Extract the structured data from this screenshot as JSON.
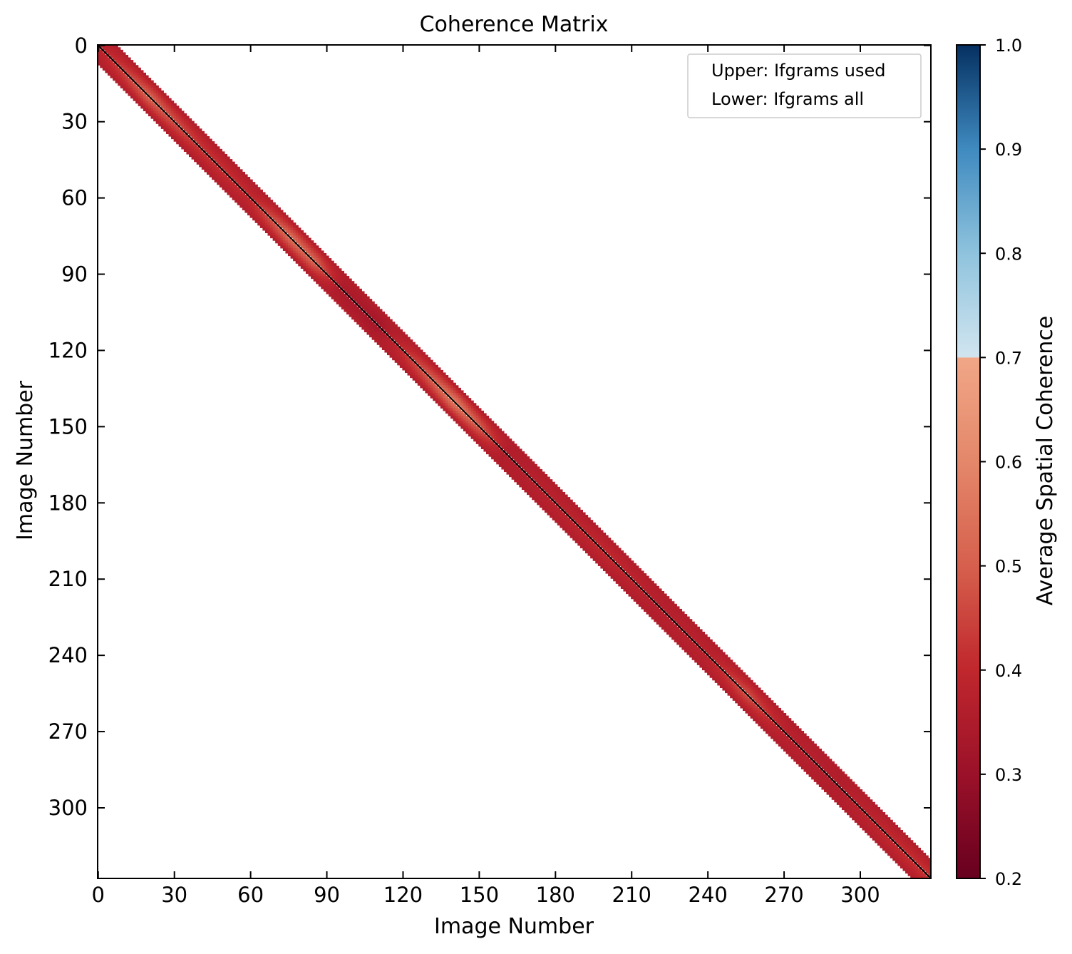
{
  "chart_data": {
    "type": "heatmap",
    "title": "Coherence Matrix",
    "xlabel": "Image Number",
    "ylabel": "Image Number",
    "n_images": 328,
    "xlim": [
      0,
      328
    ],
    "ylim": [
      328,
      0
    ],
    "xticks": [
      0,
      30,
      60,
      90,
      120,
      150,
      180,
      210,
      240,
      270,
      300
    ],
    "yticks": [
      0,
      30,
      60,
      90,
      120,
      150,
      180,
      210,
      240,
      270,
      300
    ],
    "connection_span": 7,
    "diagonal_color": "#000000",
    "background": "#ffffff",
    "coherence_profile": {
      "index": [
        0,
        20,
        40,
        60,
        75,
        85,
        95,
        110,
        125,
        140,
        150,
        160,
        180,
        200,
        220,
        240,
        255,
        270,
        290,
        310,
        327
      ],
      "adjacent_coherence": [
        0.38,
        0.5,
        0.42,
        0.4,
        0.52,
        0.5,
        0.35,
        0.33,
        0.45,
        0.55,
        0.48,
        0.36,
        0.38,
        0.4,
        0.37,
        0.38,
        0.46,
        0.38,
        0.36,
        0.4,
        0.42
      ],
      "edge_coherence": 0.36
    },
    "colorbar": {
      "label": "Average Spatial Coherence",
      "vmin": 0.2,
      "vmax": 1.0,
      "ticks": [
        1.0,
        0.9,
        0.8,
        0.7,
        0.6,
        0.5,
        0.4,
        0.3,
        0.2
      ],
      "tick_labels": [
        "1.0",
        "0.9",
        "0.8",
        "0.7",
        "0.6",
        "0.5",
        "0.4",
        "0.3",
        "0.2"
      ],
      "lower_colormap": "RdBu",
      "upper_colormap": "RdBu",
      "split_value": 0.7,
      "stops": [
        {
          "v": 0.2,
          "c": "#67001f"
        },
        {
          "v": 0.3,
          "c": "#9b1129"
        },
        {
          "v": 0.4,
          "c": "#c0272d"
        },
        {
          "v": 0.5,
          "c": "#d6604d"
        },
        {
          "v": 0.6,
          "c": "#e4876a"
        },
        {
          "v": 0.7,
          "c": "#f1a787"
        },
        {
          "v": 0.7001,
          "c": "#d1e5f0"
        },
        {
          "v": 0.8,
          "c": "#8fc3dd"
        },
        {
          "v": 0.9,
          "c": "#3f8ac0"
        },
        {
          "v": 1.0,
          "c": "#053061"
        }
      ]
    },
    "legend": {
      "placement": "top-right",
      "entries": [
        "Upper: Ifgrams used",
        "Lower: Ifgrams all"
      ]
    }
  }
}
